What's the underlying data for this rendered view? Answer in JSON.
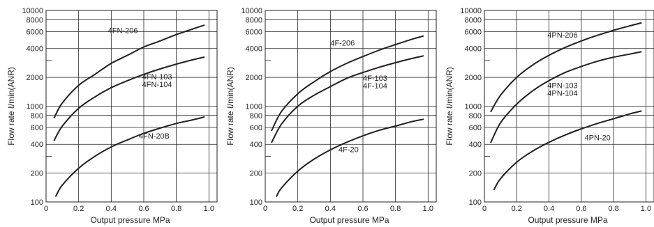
{
  "chart_data": [
    {
      "type": "line",
      "xlabel": "Output pressure   MPa",
      "ylabel": "Flow rate   ℓ/min(ANR)",
      "xlim": [
        0,
        1.05
      ],
      "ylim": [
        100,
        10000
      ],
      "yscale": "log",
      "x_ticks": [
        "0",
        "0.2",
        "0.4",
        "0.6",
        "0.8",
        "1.0"
      ],
      "y_ticks": [
        "100",
        "200",
        "400",
        "600",
        "800",
        "1000",
        "2000",
        "4000",
        "6000",
        "8000",
        "10000"
      ],
      "grid": true,
      "series": [
        {
          "name": "4FN-206",
          "x": [
            0.05,
            0.1,
            0.2,
            0.3,
            0.4,
            0.5,
            0.6,
            0.7,
            0.8,
            0.9,
            0.97
          ],
          "y": [
            760,
            1080,
            1650,
            2150,
            2800,
            3400,
            4150,
            4800,
            5600,
            6400,
            7000
          ]
        },
        {
          "name": "4FN-103\n4FN-104",
          "x": [
            0.05,
            0.1,
            0.2,
            0.3,
            0.4,
            0.5,
            0.6,
            0.7,
            0.8,
            0.9,
            0.97
          ],
          "y": [
            440,
            620,
            950,
            1250,
            1560,
            1850,
            2150,
            2450,
            2750,
            3050,
            3250
          ]
        },
        {
          "name": "4FN-20B",
          "x": [
            0.06,
            0.1,
            0.2,
            0.3,
            0.4,
            0.5,
            0.6,
            0.7,
            0.8,
            0.9,
            0.97
          ],
          "y": [
            115,
            150,
            225,
            300,
            375,
            445,
            520,
            590,
            660,
            720,
            770
          ]
        }
      ]
    },
    {
      "type": "line",
      "xlabel": "Output pressure   MPa",
      "ylabel": "Flow rate   ℓ/min(ANR)",
      "xlim": [
        0,
        1.05
      ],
      "ylim": [
        100,
        10000
      ],
      "yscale": "log",
      "x_ticks": [
        "0",
        "0.2",
        "0.4",
        "0.6",
        "0.8",
        "1.0"
      ],
      "y_ticks": [
        "100",
        "200",
        "400",
        "600",
        "800",
        "1000",
        "2000",
        "4000",
        "6000",
        "8000",
        "10000"
      ],
      "grid": true,
      "series": [
        {
          "name": "4F-206",
          "x": [
            0.04,
            0.1,
            0.2,
            0.3,
            0.4,
            0.5,
            0.6,
            0.7,
            0.8,
            0.9,
            0.97
          ],
          "y": [
            560,
            880,
            1350,
            1800,
            2300,
            2800,
            3300,
            3850,
            4400,
            5000,
            5400
          ]
        },
        {
          "name": "4F-103\n4F-104",
          "x": [
            0.04,
            0.1,
            0.2,
            0.3,
            0.4,
            0.5,
            0.6,
            0.7,
            0.8,
            0.9,
            0.97
          ],
          "y": [
            420,
            650,
            1000,
            1300,
            1600,
            1950,
            2250,
            2550,
            2850,
            3150,
            3350
          ]
        },
        {
          "name": "4F-20",
          "x": [
            0.07,
            0.1,
            0.2,
            0.3,
            0.4,
            0.5,
            0.6,
            0.7,
            0.8,
            0.9,
            0.97
          ],
          "y": [
            115,
            140,
            210,
            280,
            350,
            420,
            490,
            560,
            620,
            690,
            730
          ]
        }
      ]
    },
    {
      "type": "line",
      "xlabel": "Output pressure   MPa",
      "ylabel": "Flow rate   ℓ/min(ANR)",
      "xlim": [
        0,
        1.05
      ],
      "ylim": [
        100,
        10000
      ],
      "yscale": "log",
      "x_ticks": [
        "0",
        "0.2",
        "0.4",
        "0.6",
        "0.8",
        "1.0"
      ],
      "y_ticks": [
        "100",
        "200",
        "400",
        "600",
        "800",
        "1000",
        "2000",
        "4000",
        "6000",
        "8000",
        "10000"
      ],
      "grid": true,
      "series": [
        {
          "name": "4PN-206",
          "x": [
            0.04,
            0.1,
            0.2,
            0.3,
            0.4,
            0.5,
            0.6,
            0.7,
            0.8,
            0.9,
            0.97
          ],
          "y": [
            880,
            1300,
            2000,
            2700,
            3400,
            4100,
            4800,
            5500,
            6200,
            6900,
            7400
          ]
        },
        {
          "name": "4PN-103\n4PN-104",
          "x": [
            0.04,
            0.1,
            0.2,
            0.3,
            0.4,
            0.5,
            0.6,
            0.7,
            0.8,
            0.9,
            0.97
          ],
          "y": [
            420,
            670,
            1050,
            1450,
            1850,
            2250,
            2600,
            2950,
            3250,
            3500,
            3700
          ]
        },
        {
          "name": "4PN-20",
          "x": [
            0.06,
            0.1,
            0.2,
            0.3,
            0.4,
            0.5,
            0.6,
            0.7,
            0.8,
            0.9,
            0.97
          ],
          "y": [
            135,
            175,
            260,
            340,
            420,
            500,
            580,
            660,
            740,
            830,
            890
          ]
        }
      ]
    }
  ]
}
